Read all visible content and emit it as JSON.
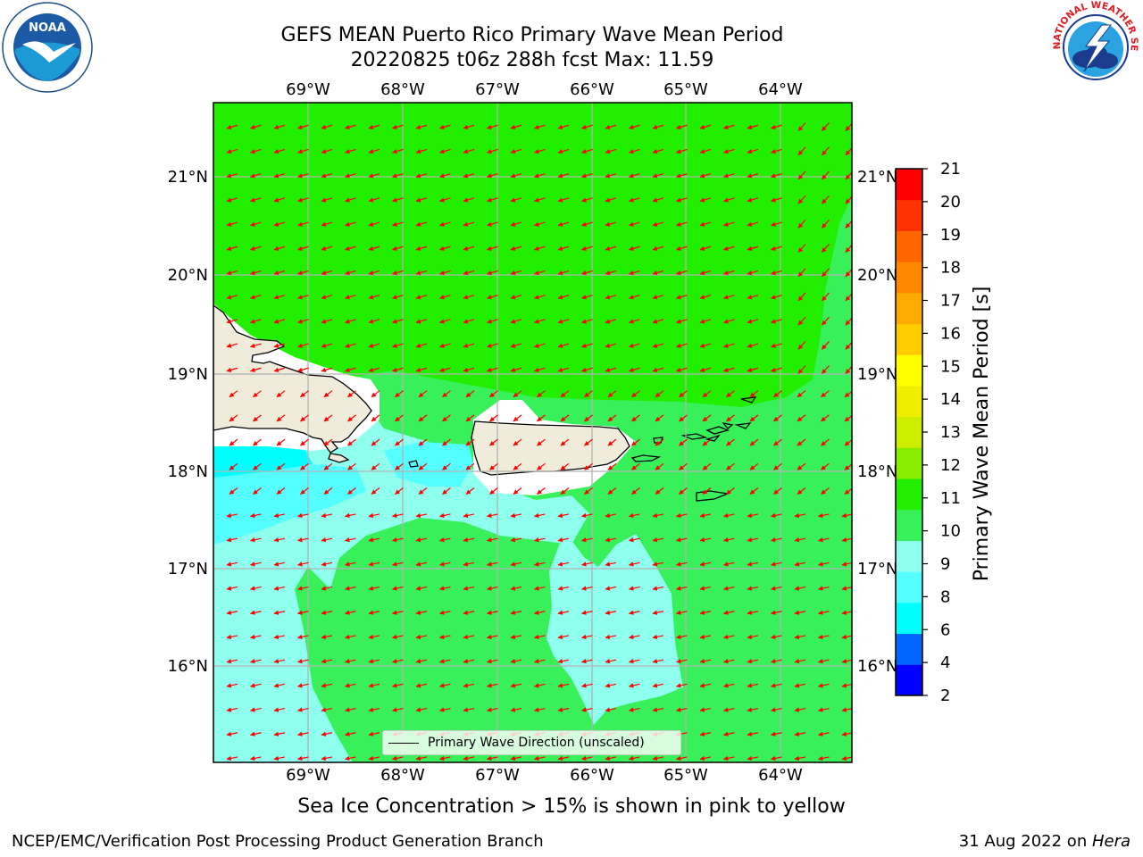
{
  "title": {
    "line1": "GEFS MEAN Puerto Rico Primary Wave Mean Period",
    "line2": "20220825 t06z 288h fcst   Max: 11.59"
  },
  "logos": {
    "noaa": {
      "text": "NOAA",
      "icon": "noaa-logo-icon"
    },
    "nws": {
      "text": "NATIONAL WEATHER SERVICE",
      "icon": "nws-logo-icon"
    }
  },
  "map": {
    "lon_ticks": [
      "69°W",
      "68°W",
      "67°W",
      "66°W",
      "65°W",
      "64°W"
    ],
    "lat_ticks": [
      "21°N",
      "20°N",
      "19°N",
      "18°N",
      "17°N",
      "16°N"
    ],
    "legend_label": "Primary Wave Direction (unscaled)",
    "land_color": "#efecdc",
    "arrow_color": "#ff0000"
  },
  "colorbar": {
    "label": "Primary Wave Mean Period [s]",
    "ticks": [
      "2",
      "4",
      "6",
      "8",
      "9",
      "10",
      "11",
      "12",
      "13",
      "14",
      "15",
      "16",
      "17",
      "18",
      "19",
      "20",
      "21"
    ],
    "colors": [
      "#0000ff",
      "#0066ff",
      "#00ffff",
      "#55ffff",
      "#8fffee",
      "#37f05a",
      "#22ee00",
      "#88ee00",
      "#ccee00",
      "#eeee00",
      "#ffff00",
      "#ffcc00",
      "#ffaa00",
      "#ff8800",
      "#ff6600",
      "#ff3300",
      "#ff0000"
    ]
  },
  "caption": "Sea Ice Concentration > 15% is shown in pink to yellow",
  "footer": {
    "left": "NCEP/EMC/Verification Post Processing Product Generation Branch",
    "right_prefix": "31 Aug 2022 on ",
    "right_host": "Hera"
  }
}
